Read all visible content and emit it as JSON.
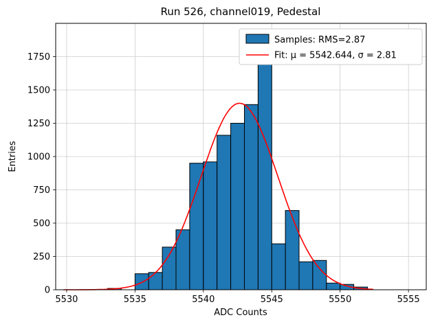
{
  "figure": {
    "title": "Run 526, channel019, Pedestal",
    "xlabel": "ADC Counts",
    "ylabel": "Entries"
  },
  "legend": {
    "samples": "Samples: RMS=2.87",
    "fit": "Fit: μ = 5542.644, σ = 2.81"
  },
  "chart_data": {
    "type": "bar",
    "subtype": "histogram",
    "title": "Run 526, channel019, Pedestal",
    "xlabel": "ADC Counts",
    "ylabel": "Entries",
    "xlim": [
      5529.2,
      5556.3
    ],
    "ylim": [
      0,
      2000
    ],
    "xticks": [
      5530,
      5535,
      5540,
      5545,
      5550,
      5555
    ],
    "yticks": [
      0,
      250,
      500,
      750,
      1000,
      1250,
      1500,
      1750
    ],
    "grid": true,
    "legend_position": "upper right",
    "legend_entries": [
      "Samples: RMS=2.87",
      "Fit: μ = 5542.644, σ = 2.81"
    ],
    "bar_color": "#1f77b4",
    "bar_edge_color": "#000000",
    "fit_color": "#ff0000",
    "grid_color": "#cccccc",
    "bin_width": 1,
    "bins": [
      [
        5533,
        10
      ],
      [
        5534,
        0
      ],
      [
        5535,
        120
      ],
      [
        5536,
        130
      ],
      [
        5537,
        320
      ],
      [
        5538,
        450
      ],
      [
        5539,
        950
      ],
      [
        5540,
        960
      ],
      [
        5541,
        1160
      ],
      [
        5542,
        1250
      ],
      [
        5543,
        1390
      ],
      [
        5544,
        1700
      ],
      [
        5545,
        345
      ],
      [
        5546,
        595
      ],
      [
        5547,
        210
      ],
      [
        5548,
        220
      ],
      [
        5549,
        50
      ],
      [
        5550,
        40
      ],
      [
        5551,
        20
      ]
    ],
    "fit": {
      "mu": 5542.644,
      "sigma": 2.81,
      "amplitude": 1400,
      "x_range": [
        5529.8,
        5552.4
      ]
    },
    "rms": 2.87
  }
}
